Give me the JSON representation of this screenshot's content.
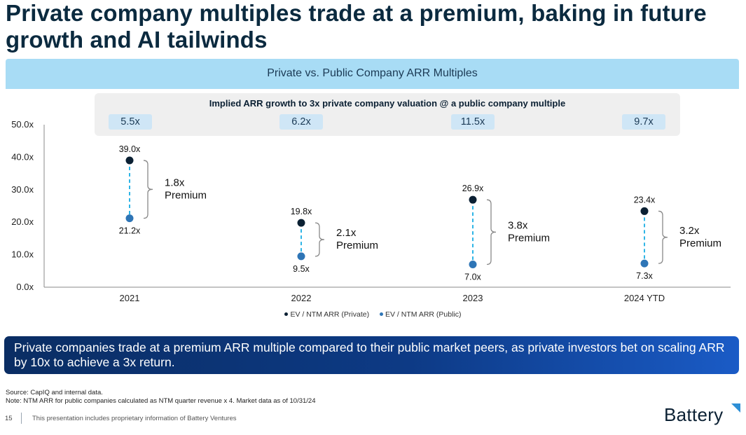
{
  "title": "Private company multiples trade at a premium, baking in future growth and AI tailwinds",
  "banner": "Private vs. Public Company ARR Multiples",
  "implied": {
    "title": "Implied ARR growth to 3x private company valuation @ a public company multiple",
    "values": [
      "5.5x",
      "6.2x",
      "11.5x",
      "9.7x"
    ]
  },
  "chart_data": {
    "type": "scatter",
    "categories": [
      "2021",
      "2022",
      "2023",
      "2024 YTD"
    ],
    "series": [
      {
        "name": "EV / NTM ARR (Private)",
        "values": [
          39.0,
          19.8,
          26.9,
          23.4
        ],
        "labels": [
          "39.0x",
          "19.8x",
          "26.9x",
          "23.4x"
        ],
        "color": "#0b2033"
      },
      {
        "name": "EV / NTM ARR (Public)",
        "values": [
          21.2,
          9.5,
          7.0,
          7.3
        ],
        "labels": [
          "21.2x",
          "9.5x",
          "7.0x",
          "7.3x"
        ],
        "color": "#2e75b6"
      }
    ],
    "premium_labels": [
      {
        "value": "1.8x",
        "word": "Premium"
      },
      {
        "value": "2.1x",
        "word": "Premium"
      },
      {
        "value": "3.8x",
        "word": "Premium"
      },
      {
        "value": "3.2x",
        "word": "Premium"
      }
    ],
    "ylim": [
      0,
      50
    ],
    "yticks": [
      "0.0x",
      "10.0x",
      "20.0x",
      "30.0x",
      "40.0x",
      "50.0x"
    ],
    "connector_color": "#2fb5e6",
    "grid": false,
    "legend_position": "bottom"
  },
  "callout": "Private companies trade at a premium ARR multiple compared to their public market peers, as private investors bet on scaling ARR by 10x to achieve a 3x return.",
  "footer": {
    "source": "Source: CapIQ and internal data.",
    "note": "Note: NTM ARR for public companies calculated as NTM quarter revenue x 4. Market data as of 10/31/24",
    "page": "15",
    "disclaimer": "This presentation includes proprietary information of Battery Ventures",
    "logo": "Battery",
    "logo_color": "#2e8fd6"
  }
}
